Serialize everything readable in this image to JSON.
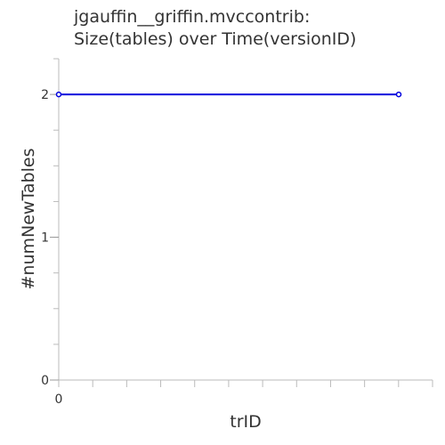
{
  "chart_data": {
    "type": "line",
    "title_lines": [
      "jgauffin__griffin.mvccontrib:",
      "Size(tables) over Time(versionID)"
    ],
    "xlabel": "trID",
    "ylabel": "#numNewTables",
    "x_tick_labels": [
      "0"
    ],
    "y_ticks": [
      0,
      1,
      2
    ],
    "ylim": [
      0,
      2.25
    ],
    "x_minor_tick_count": 12,
    "y_minor_tick_count": 9,
    "grid": false,
    "series": [
      {
        "color": "#0000dd",
        "points": [
          {
            "x": 0,
            "y": 2
          },
          {
            "x": 1,
            "y": 2
          }
        ]
      }
    ]
  }
}
